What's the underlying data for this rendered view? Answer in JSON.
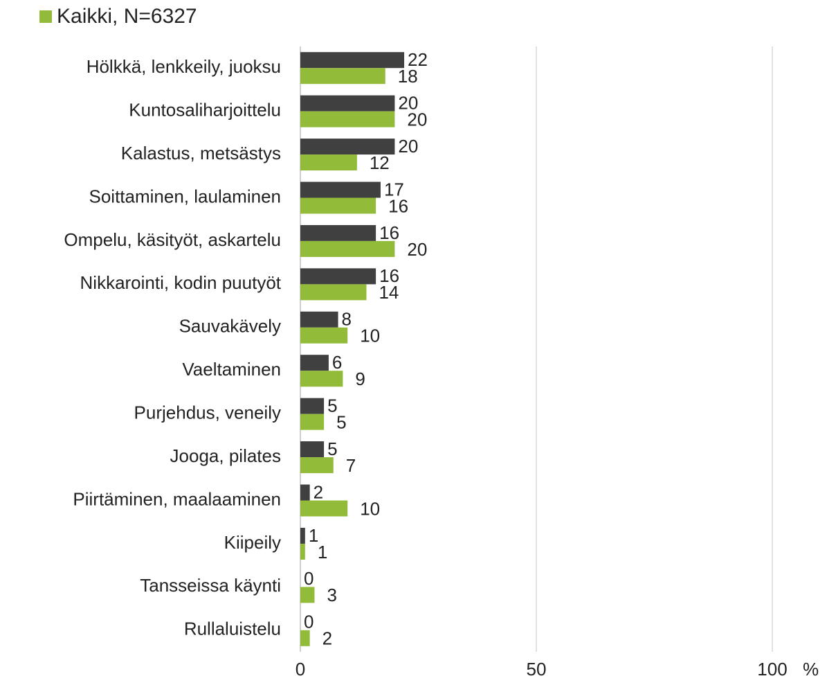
{
  "chart_data": {
    "type": "hbar",
    "categories": [
      "Hölkkä, lenkkeily, juoksu",
      "Kuntosaliharjoittelu",
      "Kalastus, metsästys",
      "Soittaminen, laulaminen",
      "Ompelu, käsityöt, askartelu",
      "Nikkarointi, kodin puutyöt",
      "Sauvakävely",
      "Vaeltaminen",
      "Purjehdus, veneily",
      "Jooga, pilates",
      "Piirtäminen, maalaaminen",
      "Kiipeily",
      "Tansseissa käynti",
      "Rullaluistelu"
    ],
    "series": [
      {
        "color": "#404040",
        "values": [
          22,
          20,
          20,
          17,
          16,
          16,
          8,
          6,
          5,
          5,
          2,
          1,
          0,
          0
        ]
      },
      {
        "name": "Kaikki, N=6327",
        "color": "#92bb3a",
        "values": [
          18,
          20,
          12,
          16,
          20,
          14,
          10,
          9,
          5,
          7,
          10,
          1,
          3,
          2
        ]
      }
    ],
    "xlim": [
      0,
      100
    ],
    "xticks": [
      0,
      50,
      100
    ],
    "xlabel": "%",
    "grid": true
  }
}
